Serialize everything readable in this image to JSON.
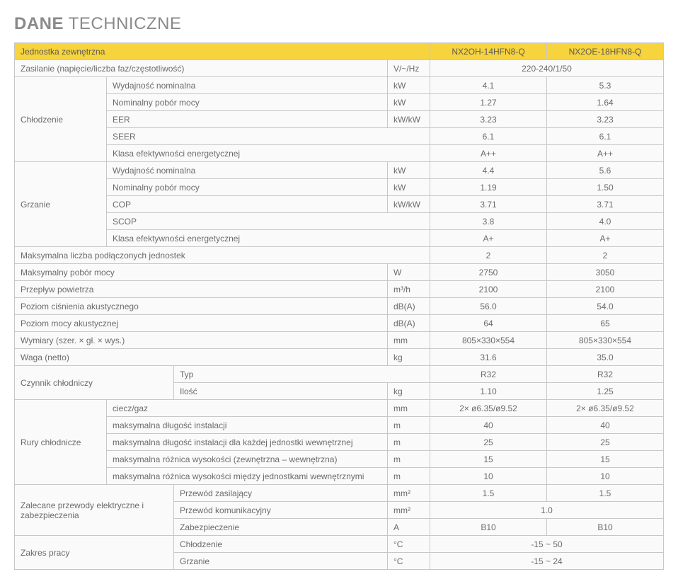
{
  "title_bold": "DANE",
  "title_rest": " TECHNICZNE",
  "header": {
    "label": "Jednostka zewnętrzna",
    "models": [
      "NX2OH-14HFN8-Q",
      "NX2OE-18HFN8-Q"
    ]
  },
  "rows": [
    {
      "type": "single",
      "label": "Zasilanie (napięcie/liczba faz/częstotliwość)",
      "unit": "V/~/Hz",
      "span": true,
      "val": "220-240/1/50"
    },
    {
      "type": "group",
      "group": "Chłodzenie",
      "group_rows": 5,
      "sub": "Wydajność nominalna",
      "unit": "kW",
      "vals": [
        "4.1",
        "5.3"
      ]
    },
    {
      "type": "sub",
      "sub": "Nominalny pobór mocy",
      "unit": "kW",
      "vals": [
        "1.27",
        "1.64"
      ]
    },
    {
      "type": "sub",
      "sub": "EER",
      "unit": "kW/kW",
      "vals": [
        "3.23",
        "3.23"
      ]
    },
    {
      "type": "sub_nounit",
      "sub": "SEER",
      "vals": [
        "6.1",
        "6.1"
      ]
    },
    {
      "type": "sub_nounit",
      "sub": "Klasa efektywności energetycznej",
      "vals": [
        "A++",
        "A++"
      ]
    },
    {
      "type": "group",
      "group": "Grzanie",
      "group_rows": 5,
      "sub": "Wydajność nominalna",
      "unit": "kW",
      "vals": [
        "4.4",
        "5.6"
      ]
    },
    {
      "type": "sub",
      "sub": "Nominalny pobór mocy",
      "unit": "kW",
      "vals": [
        "1.19",
        "1.50"
      ]
    },
    {
      "type": "sub",
      "sub": "COP",
      "unit": "kW/kW",
      "vals": [
        "3.71",
        "3.71"
      ]
    },
    {
      "type": "sub_nounit",
      "sub": "SCOP",
      "vals": [
        "3.8",
        "4.0"
      ]
    },
    {
      "type": "sub_nounit",
      "sub": "Klasa efektywności energetycznej",
      "vals": [
        "A+",
        "A+"
      ]
    },
    {
      "type": "single_nounit",
      "label": "Maksymalna liczba podłączonych jednostek",
      "vals": [
        "2",
        "2"
      ]
    },
    {
      "type": "single",
      "label": "Maksymalny pobór mocy",
      "unit": "W",
      "vals": [
        "2750",
        "3050"
      ]
    },
    {
      "type": "single",
      "label": "Przepływ powietrza",
      "unit": "m³/h",
      "vals": [
        "2100",
        "2100"
      ]
    },
    {
      "type": "single",
      "label": "Poziom ciśnienia akustycznego",
      "unit": "dB(A)",
      "vals": [
        "56.0",
        "54.0"
      ]
    },
    {
      "type": "single",
      "label": "Poziom mocy akustycznej",
      "unit": "dB(A)",
      "vals": [
        "64",
        "65"
      ]
    },
    {
      "type": "single",
      "label": "Wymiary (szer. × gł. × wys.)",
      "unit": "mm",
      "vals": [
        "805×330×554",
        "805×330×554"
      ]
    },
    {
      "type": "single",
      "label": "Waga (netto)",
      "unit": "kg",
      "vals": [
        "31.6",
        "35.0"
      ]
    },
    {
      "type": "group2",
      "group": "Czynnik chłodniczy",
      "group_rows": 2,
      "sub": "Typ",
      "nounit": true,
      "vals": [
        "R32",
        "R32"
      ]
    },
    {
      "type": "sub2",
      "sub": "Ilość",
      "unit": "kg",
      "vals": [
        "1.10",
        "1.25"
      ]
    },
    {
      "type": "group",
      "group": "Rury chłodnicze",
      "group_rows": 5,
      "sub": "ciecz/gaz",
      "unit": "mm",
      "vals": [
        "2× ø6.35/ø9.52",
        "2× ø6.35/ø9.52"
      ]
    },
    {
      "type": "sub",
      "sub": "maksymalna długość instalacji",
      "unit": "m",
      "vals": [
        "40",
        "40"
      ]
    },
    {
      "type": "sub",
      "sub": "maksymalna długość instalacji dla każdej jednostki wewnętrznej",
      "unit": "m",
      "vals": [
        "25",
        "25"
      ]
    },
    {
      "type": "sub",
      "sub": "maksymalna różnica wysokości  (zewnętrzna – wewnętrzna)",
      "unit": "m",
      "vals": [
        "15",
        "15"
      ]
    },
    {
      "type": "sub",
      "sub": "maksymalna różnica wysokości między jednostkami wewnętrznymi",
      "unit": "m",
      "vals": [
        "10",
        "10"
      ]
    },
    {
      "type": "group2",
      "group": "Zalecane przewody elektryczne i zabezpieczenia",
      "group_rows": 3,
      "sub": "Przewód zasilający",
      "unit": "mm²",
      "vals": [
        "1.5",
        "1.5"
      ]
    },
    {
      "type": "sub2",
      "sub": "Przewód komunikacyjny",
      "unit": "mm²",
      "span": true,
      "val": "1.0"
    },
    {
      "type": "sub2",
      "sub": "Zabezpieczenie",
      "unit": "A",
      "vals": [
        "B10",
        "B10"
      ]
    },
    {
      "type": "group2",
      "group": "Zakres pracy",
      "group_rows": 2,
      "sub": "Chłodzenie",
      "unit": "°C",
      "span": true,
      "val": "-15 ~ 50"
    },
    {
      "type": "sub2",
      "sub": "Grzanie",
      "unit": "°C",
      "span": true,
      "val": "-15 ~ 24"
    }
  ],
  "colors": {
    "header_bg": "#f7d33d",
    "cell_bg": "#fafafa",
    "border": "#c7c7c7",
    "text": "#6b6b6b"
  }
}
